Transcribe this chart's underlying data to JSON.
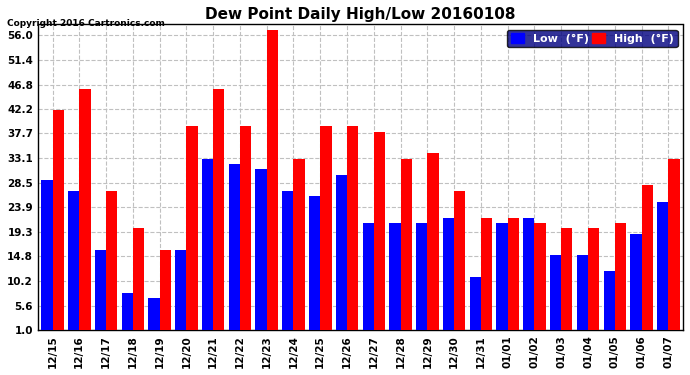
{
  "title": "Dew Point Daily High/Low 20160108",
  "copyright": "Copyright 2016 Cartronics.com",
  "dates": [
    "12/15",
    "12/16",
    "12/17",
    "12/18",
    "12/19",
    "12/20",
    "12/21",
    "12/22",
    "12/23",
    "12/24",
    "12/25",
    "12/26",
    "12/27",
    "12/28",
    "12/29",
    "12/30",
    "12/31",
    "01/01",
    "01/02",
    "01/03",
    "01/04",
    "01/05",
    "01/06",
    "01/07"
  ],
  "low": [
    29,
    27,
    16,
    8,
    7,
    16,
    33,
    32,
    31,
    27,
    26,
    30,
    21,
    21,
    21,
    22,
    11,
    21,
    22,
    15,
    15,
    12,
    19,
    25
  ],
  "high": [
    42,
    46,
    27,
    20,
    16,
    39,
    46,
    39,
    57,
    33,
    39,
    39,
    38,
    33,
    34,
    27,
    22,
    22,
    21,
    20,
    20,
    21,
    28,
    33
  ],
  "low_color": "#0000ff",
  "high_color": "#ff0000",
  "bg_color": "#ffffff",
  "plot_bg_color": "#ffffff",
  "grid_color": "#c0c0c0",
  "yticks": [
    1.0,
    5.6,
    10.2,
    14.8,
    19.3,
    23.9,
    28.5,
    33.1,
    37.7,
    42.2,
    46.8,
    51.4,
    56.0
  ],
  "ymin": 1.0,
  "ymax": 58.0,
  "bar_width": 0.42,
  "title_fontsize": 11,
  "tick_fontsize": 7.5,
  "legend_fontsize": 8
}
